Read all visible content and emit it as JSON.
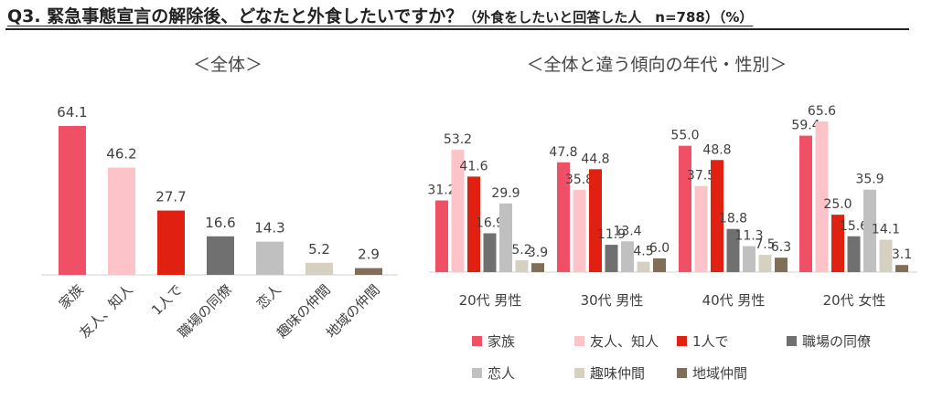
{
  "header": {
    "title": "Q3. 緊急事態宣言の解除後、どなたと外食したいですか？",
    "subtitle": "（外食をしたいと回答した人　n=788）（%）"
  },
  "colors": {
    "家族": "#f05065",
    "友人、知人": "#fcc3c9",
    "1人で": "#e02010",
    "職場の同僚": "#707070",
    "恋人": "#c0c0c0",
    "趣味仲間": "#d6d0c0",
    "地域仲間": "#806e58"
  },
  "chart_data": [
    {
      "type": "bar",
      "title": "＜全体＞",
      "categories": [
        "家族",
        "友人、知人",
        "1人で",
        "職場の同僚",
        "恋人",
        "趣味の仲間",
        "地域の仲間"
      ],
      "values": [
        64.1,
        46.2,
        27.7,
        16.6,
        14.3,
        5.2,
        2.9
      ],
      "bar_colors": [
        "#f05065",
        "#fcc3c9",
        "#e02010",
        "#707070",
        "#c0c0c0",
        "#d6d0c0",
        "#806e58"
      ],
      "ylim": [
        0,
        70
      ],
      "grid": false
    },
    {
      "type": "bar",
      "title": "＜全体と違う傾向の年代・性別＞",
      "categories": [
        "20代 男性",
        "30代 男性",
        "40代 男性",
        "20代 女性"
      ],
      "series": [
        {
          "name": "家族",
          "values": [
            31.2,
            47.8,
            55.0,
            59.4
          ],
          "color": "#f05065"
        },
        {
          "name": "友人、知人",
          "values": [
            53.2,
            35.8,
            37.5,
            65.6
          ],
          "color": "#fcc3c9"
        },
        {
          "name": "1人で",
          "values": [
            41.6,
            44.8,
            48.8,
            25.0
          ],
          "color": "#e02010"
        },
        {
          "name": "職場の同僚",
          "values": [
            16.9,
            11.9,
            18.8,
            15.6
          ],
          "color": "#707070"
        },
        {
          "name": "恋人",
          "values": [
            29.9,
            13.4,
            11.3,
            35.9
          ],
          "color": "#c0c0c0"
        },
        {
          "name": "趣味仲間",
          "values": [
            5.2,
            4.5,
            7.5,
            14.1
          ],
          "color": "#d6d0c0"
        },
        {
          "name": "地域仲間",
          "values": [
            3.9,
            6.0,
            6.3,
            3.1
          ],
          "color": "#806e58"
        }
      ],
      "ylim": [
        0,
        70
      ],
      "grid": false,
      "legend_position": "bottom"
    }
  ]
}
